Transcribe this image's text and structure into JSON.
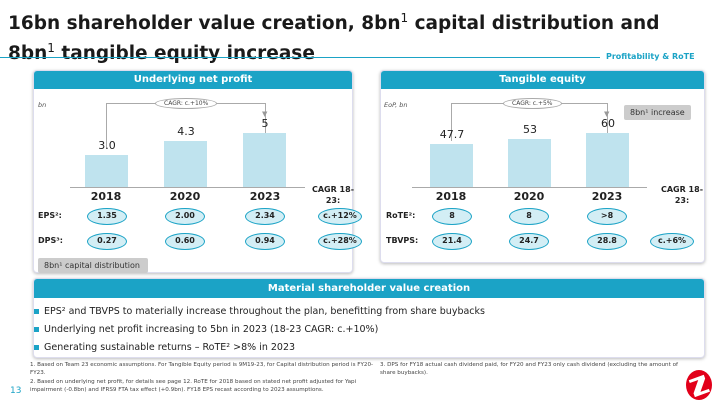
{
  "header": {
    "title_part1": "16bn shareholder value creation, 8bn",
    "title_sup1": "1",
    "title_part2": " capital distribution and 8bn",
    "title_sup2": "1",
    "title_part3": " tangible equity increase",
    "section": "Profitability & RoTE"
  },
  "left_panel": {
    "title": "Underlying net profit",
    "unit": "bn",
    "cagr_label": "CAGR: c.+10%",
    "cagr_header": "CAGR 18-23:",
    "rows": [
      {
        "label": "EPS²:",
        "values": [
          "1.35",
          "2.00",
          "2.34"
        ],
        "cagr": "c.+12%"
      },
      {
        "label": "DPS³:",
        "values": [
          "0.27",
          "0.60",
          "0.94"
        ],
        "cagr": "c.+28%"
      }
    ],
    "callout": "8bn¹ capital distribution"
  },
  "right_panel": {
    "title": "Tangible equity",
    "unit": "EoP, bn",
    "cagr_label": "CAGR: c.+5%",
    "cagr_header": "CAGR 18-23:",
    "rows": [
      {
        "label": "RoTE²:",
        "values": [
          "8",
          "8",
          ">8"
        ],
        "cagr": ""
      },
      {
        "label": "TBVPS:",
        "values": [
          "21.4",
          "24.7",
          "28.8"
        ],
        "cagr": "c.+6%"
      }
    ],
    "callout": "8bn¹ increase"
  },
  "chart_data": [
    {
      "type": "bar",
      "title": "Underlying net profit",
      "ylabel": "bn",
      "categories": [
        "2018",
        "2020",
        "2023"
      ],
      "values": [
        3.0,
        4.3,
        5
      ],
      "labels": [
        "3.0",
        "4.3",
        "5"
      ],
      "ylim": [
        0,
        5.55
      ],
      "color": "#bfe3ee"
    },
    {
      "type": "bar",
      "title": "Tangible equity",
      "ylabel": "EoP, bn",
      "categories": [
        "2018",
        "2020",
        "2023"
      ],
      "values": [
        47.7,
        53,
        60
      ],
      "labels": [
        "47.7",
        "53",
        "60"
      ],
      "ylim": [
        0,
        66.7
      ],
      "color": "#bfe3ee"
    }
  ],
  "bottom": {
    "title": "Material shareholder value creation",
    "bullets": [
      "EPS² and TBVPS to materially increase throughout the plan, benefitting from share buybacks",
      "Underlying net profit increasing to 5bn in 2023 (18-23 CAGR: c.+10%)",
      "Generating sustainable returns – RoTE² >8% in 2023"
    ]
  },
  "footnotes": {
    "left": [
      "1. Based on Team 23 economic assumptions. For Tangible Equity period is 9M19-23, for Capital distribution period is FY20-FY23.",
      "2. Based on underlying net profit, for details see page 12. RoTE for 2018 based on stated net profit adjusted for Yapi impairment (-0.8bn) and IFRS9 FTA tax effect (+0.9bn). FY18 EPS recast according to 2023 assumptions."
    ],
    "right": [
      "3. DPS for FY18 actual cash dividend paid, for FY20 and FY23 only cash dividend (excluding the amount of share buybacks)."
    ]
  },
  "page_number": "13",
  "colors": {
    "accent": "#1ba3c6",
    "bar": "#bfe3ee",
    "logo": "#e2001a"
  }
}
